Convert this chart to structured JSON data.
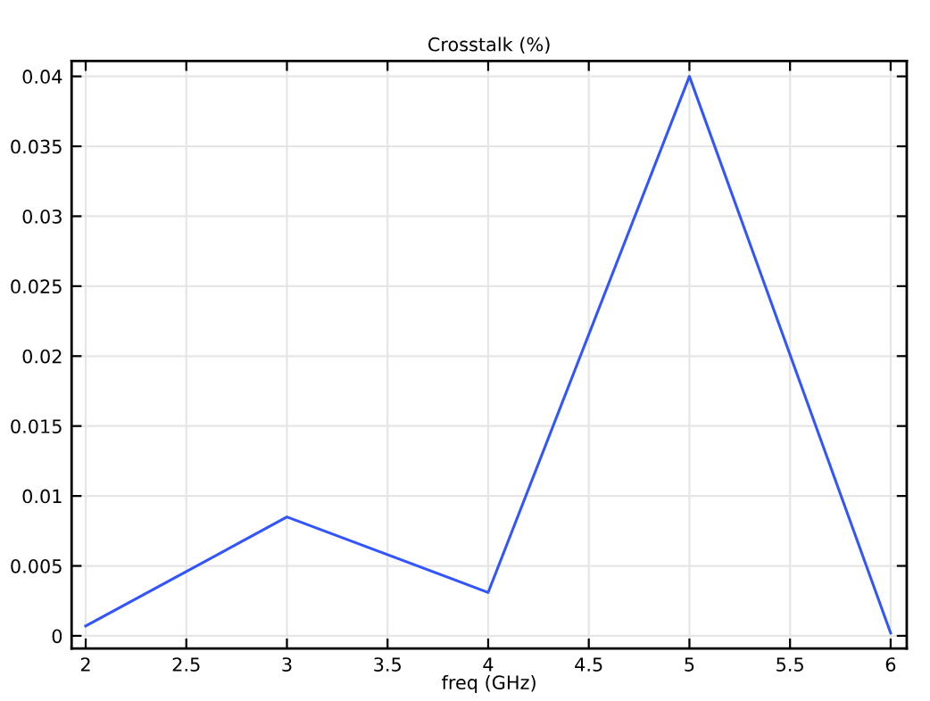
{
  "chart_data": {
    "type": "line",
    "title": "Crosstalk (%)",
    "xlabel": "freq (GHz)",
    "x": [
      2,
      3,
      4,
      5,
      6
    ],
    "series": [
      {
        "color": "#3355ff",
        "values": [
          0.0007,
          0.0085,
          0.0031,
          0.04,
          0.0002
        ]
      }
    ],
    "xlim": [
      1.93,
      6.08
    ],
    "xticks": [
      2,
      2.5,
      3,
      3.5,
      4,
      4.5,
      5,
      5.5,
      6
    ],
    "ylim": [
      -0.0009,
      0.0411
    ],
    "yticks": [
      0,
      0.005,
      0.01,
      0.015,
      0.02,
      0.025,
      0.03,
      0.035,
      0.04
    ],
    "grid": true,
    "line_style": "solid",
    "marker": "none"
  }
}
